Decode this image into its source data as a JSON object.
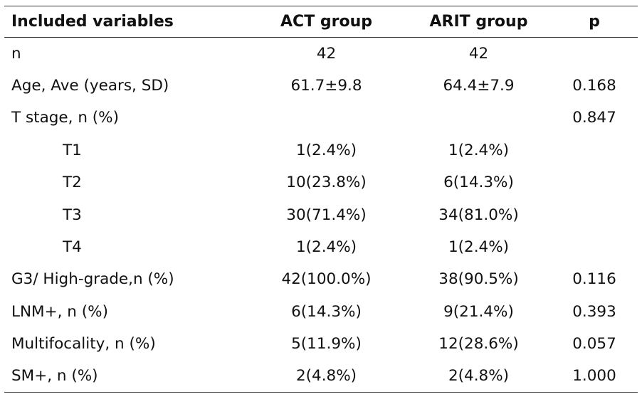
{
  "table": {
    "headers": [
      "Included variables",
      "ACT group",
      "ARIT group",
      "p"
    ],
    "rows": [
      {
        "label": "n",
        "act": "42",
        "arit": "42",
        "p": "",
        "indent": false
      },
      {
        "label": "Age, Ave (years, SD)",
        "act": "61.7±9.8",
        "arit": "64.4±7.9",
        "p": "0.168",
        "indent": false
      },
      {
        "label": "T stage, n (%)",
        "act": "",
        "arit": "",
        "p": "0.847",
        "indent": false
      },
      {
        "label": "T1",
        "act": "1(2.4%)",
        "arit": "1(2.4%)",
        "p": "",
        "indent": true
      },
      {
        "label": "T2",
        "act": "10(23.8%)",
        "arit": "6(14.3%)",
        "p": "",
        "indent": true
      },
      {
        "label": "T3",
        "act": "30(71.4%)",
        "arit": "34(81.0%)",
        "p": "",
        "indent": true
      },
      {
        "label": "T4",
        "act": "1(2.4%)",
        "arit": "1(2.4%)",
        "p": "",
        "indent": true
      },
      {
        "label": "G3/ High-grade,n (%)",
        "act": "42(100.0%)",
        "arit": "38(90.5%)",
        "p": "0.116",
        "indent": false
      },
      {
        "label": "LNM+, n (%)",
        "act": "6(14.3%)",
        "arit": "9(21.4%)",
        "p": "0.393",
        "indent": false
      },
      {
        "label": "Multifocality, n (%)",
        "act": "5(11.9%)",
        "arit": "12(28.6%)",
        "p": "0.057",
        "indent": false
      },
      {
        "label": "SM+, n (%)",
        "act": "2(4.8%)",
        "arit": "2(4.8%)",
        "p": "1.000",
        "indent": false
      }
    ]
  }
}
